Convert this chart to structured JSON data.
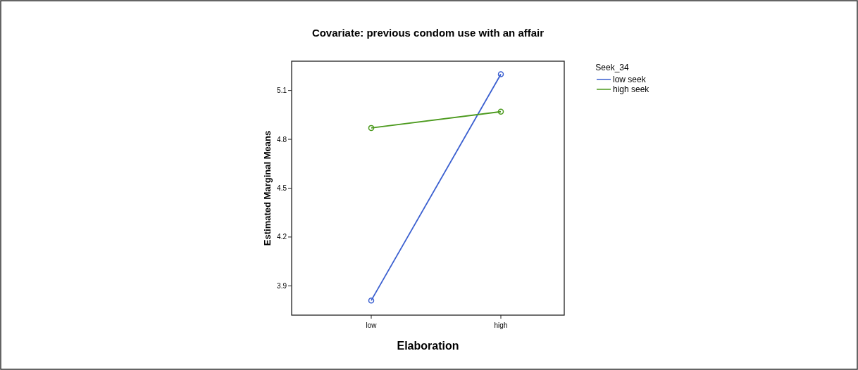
{
  "chart_data": {
    "type": "line",
    "title": "Covariate: previous condom use with an affair",
    "xlabel": "Elaboration",
    "ylabel": "Estimated Marginal Means",
    "legend_title": "Seek_34",
    "categories": [
      "low",
      "high"
    ],
    "series": [
      {
        "name": "low seek",
        "color": "#3a5fd0",
        "values": [
          3.81,
          5.2
        ]
      },
      {
        "name": "high seek",
        "color": "#4c9a1e",
        "values": [
          4.87,
          4.97
        ]
      }
    ],
    "ylim": [
      3.72,
      5.28
    ],
    "yticks": [
      3.9,
      4.2,
      4.5,
      4.8,
      5.1
    ],
    "grid": false,
    "legend": "right",
    "marker": "circle",
    "line_style": "solid"
  }
}
